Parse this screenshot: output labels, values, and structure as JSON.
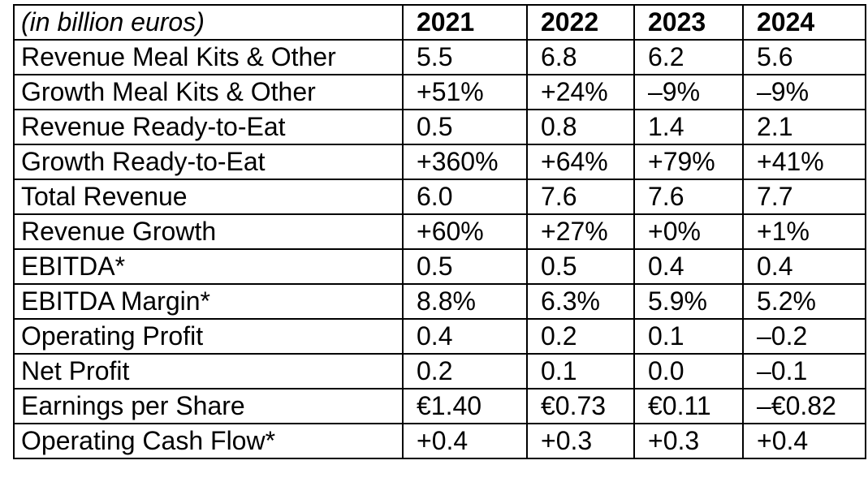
{
  "table": {
    "unit_label": "(in billion euros)",
    "years": [
      "2021",
      "2022",
      "2023",
      "2024"
    ],
    "rows": [
      {
        "label": "Revenue Meal Kits & Other",
        "values": [
          "5.5",
          "6.8",
          "6.2",
          "5.6"
        ]
      },
      {
        "label": "Growth Meal Kits & Other",
        "values": [
          "+51%",
          "+24%",
          "–9%",
          "–9%"
        ]
      },
      {
        "label": "Revenue Ready-to-Eat",
        "values": [
          "0.5",
          "0.8",
          "1.4",
          "2.1"
        ]
      },
      {
        "label": "Growth Ready-to-Eat",
        "values": [
          "+360%",
          "+64%",
          "+79%",
          "+41%"
        ]
      },
      {
        "label": "Total Revenue",
        "values": [
          "6.0",
          "7.6",
          "7.6",
          "7.7"
        ]
      },
      {
        "label": "Revenue Growth",
        "values": [
          "+60%",
          "+27%",
          "+0%",
          "+1%"
        ]
      },
      {
        "label": "EBITDA*",
        "values": [
          "0.5",
          "0.5",
          "0.4",
          "0.4"
        ]
      },
      {
        "label": "EBITDA Margin*",
        "values": [
          "8.8%",
          "6.3%",
          "5.9%",
          "5.2%"
        ]
      },
      {
        "label": "Operating Profit",
        "values": [
          "0.4",
          "0.2",
          "0.1",
          "–0.2"
        ]
      },
      {
        "label": "Net Profit",
        "values": [
          "0.2",
          "0.1",
          "0.0",
          "–0.1"
        ]
      },
      {
        "label": "Earnings per Share",
        "values": [
          "€1.40",
          "€0.73",
          "€0.11",
          "–€0.82"
        ]
      },
      {
        "label": "Operating Cash Flow*",
        "values": [
          "+0.4",
          "+0.3",
          "+0.3",
          "+0.4"
        ]
      }
    ]
  }
}
